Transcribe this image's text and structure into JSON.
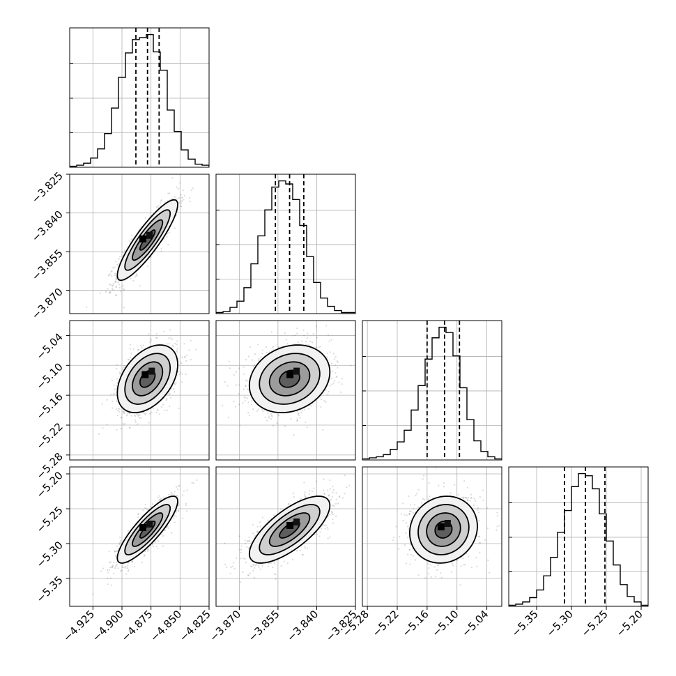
{
  "chart_data": {
    "type": "corner",
    "parameters": [
      {
        "index": 0,
        "range": [
          -4.945,
          -4.825
        ],
        "ticks": [
          -4.925,
          -4.9,
          -4.875,
          -4.85,
          -4.825
        ],
        "tick_labels": [
          "−4.925",
          "−4.900",
          "−4.875",
          "−4.850",
          "−4.825"
        ],
        "quantiles": [
          -4.888,
          -4.878,
          -4.868
        ],
        "hist_bins": [
          -4.945,
          -4.939,
          -4.933,
          -4.927,
          -4.921,
          -4.915,
          -4.909,
          -4.903,
          -4.897,
          -4.891,
          -4.885,
          -4.879,
          -4.873,
          -4.867,
          -4.861,
          -4.855,
          -4.849,
          -4.843,
          -4.837,
          -4.831,
          -4.825
        ],
        "hist_counts": [
          1,
          2,
          4,
          9,
          18,
          33,
          58,
          88,
          112,
          125,
          127,
          130,
          113,
          95,
          56,
          35,
          17,
          8,
          3,
          2
        ]
      },
      {
        "index": 1,
        "range": [
          -3.879,
          -3.825
        ],
        "ticks": [
          -3.87,
          -3.855,
          -3.84,
          -3.825
        ],
        "tick_labels": [
          "−3.870",
          "−3.855",
          "−3.840",
          "−3.825"
        ],
        "quantiles": [
          -3.856,
          -3.8505,
          -3.845
        ],
        "hist_bins": [
          -3.879,
          -3.8763,
          -3.8736,
          -3.8709,
          -3.8682,
          -3.8655,
          -3.8628,
          -3.8601,
          -3.8574,
          -3.8547,
          -3.852,
          -3.8493,
          -3.8466,
          -3.8439,
          -3.8412,
          -3.8385,
          -3.8358,
          -3.8331,
          -3.8304,
          -3.8277,
          -3.825
        ],
        "hist_counts": [
          1,
          2,
          6,
          12,
          25,
          48,
          75,
          100,
          122,
          128,
          125,
          110,
          85,
          55,
          30,
          15,
          7,
          3,
          1,
          1
        ]
      },
      {
        "index": 2,
        "range": [
          -5.29,
          -5.01
        ],
        "ticks": [
          -5.28,
          -5.22,
          -5.16,
          -5.1,
          -5.04
        ],
        "tick_labels": [
          "−5.28",
          "−5.22",
          "−5.16",
          "−5.10",
          "−5.04"
        ],
        "quantiles": [
          -5.16,
          -5.125,
          -5.095
        ],
        "hist_bins": [
          -5.29,
          -5.276,
          -5.262,
          -5.248,
          -5.234,
          -5.22,
          -5.206,
          -5.192,
          -5.178,
          -5.164,
          -5.15,
          -5.136,
          -5.122,
          -5.108,
          -5.094,
          -5.08,
          -5.066,
          -5.052,
          -5.038,
          -5.024,
          -5.01
        ],
        "hist_counts": [
          1,
          2,
          3,
          5,
          10,
          17,
          28,
          47,
          70,
          95,
          115,
          125,
          120,
          98,
          68,
          38,
          18,
          8,
          3,
          1
        ]
      },
      {
        "index": 3,
        "range": [
          -5.39,
          -5.19
        ],
        "ticks": [
          -5.35,
          -5.3,
          -5.25,
          -5.2
        ],
        "tick_labels": [
          "−5.35",
          "−5.30",
          "−5.25",
          "−5.20"
        ],
        "quantiles": [
          -5.31,
          -5.28,
          -5.252
        ],
        "hist_bins": [
          -5.39,
          -5.38,
          -5.37,
          -5.36,
          -5.35,
          -5.34,
          -5.33,
          -5.32,
          -5.31,
          -5.3,
          -5.29,
          -5.28,
          -5.27,
          -5.26,
          -5.25,
          -5.24,
          -5.23,
          -5.22,
          -5.21,
          -5.2,
          -5.19
        ],
        "hist_counts": [
          1,
          2,
          4,
          8,
          15,
          28,
          45,
          68,
          88,
          110,
          122,
          120,
          108,
          85,
          60,
          38,
          20,
          9,
          4,
          1
        ]
      }
    ],
    "pairs": [
      {
        "x": 0,
        "y": 1,
        "center": [
          -4.878,
          -3.8505
        ],
        "spread": [
          0.013,
          0.0078
        ],
        "correlation": 0.88,
        "peak": [
          -4.879,
          -3.8503
        ]
      },
      {
        "x": 0,
        "y": 2,
        "center": [
          -4.878,
          -5.127
        ],
        "spread": [
          0.013,
          0.034
        ],
        "correlation": 0.42,
        "peak": [
          -4.877,
          -5.12
        ]
      },
      {
        "x": 1,
        "y": 2,
        "center": [
          -3.8505,
          -5.127
        ],
        "spread": [
          0.0078,
          0.034
        ],
        "correlation": 0.2,
        "peak": [
          -3.849,
          -5.12
        ]
      },
      {
        "x": 0,
        "y": 3,
        "center": [
          -4.878,
          -5.28
        ],
        "spread": [
          0.013,
          0.024
        ],
        "correlation": 0.85,
        "peak": [
          -4.879,
          -5.278
        ]
      },
      {
        "x": 1,
        "y": 3,
        "center": [
          -3.8505,
          -5.28
        ],
        "spread": [
          0.0078,
          0.024
        ],
        "correlation": 0.72,
        "peak": [
          -3.849,
          -5.275
        ]
      },
      {
        "x": 2,
        "y": 3,
        "center": [
          -5.127,
          -5.28
        ],
        "spread": [
          0.034,
          0.024
        ],
        "correlation": 0.1,
        "peak": [
          -5.125,
          -5.277
        ]
      }
    ],
    "contour_levels_sigma": [
      0.5,
      1.0,
      1.5,
      2.0
    ],
    "grid": true,
    "colors": {
      "line": "#000000",
      "grid": "#b0b0b0",
      "points": "#555555",
      "density": "#000000"
    }
  }
}
